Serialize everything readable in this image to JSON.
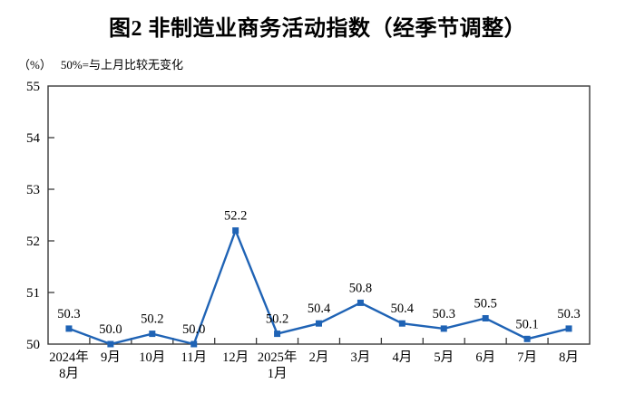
{
  "title": "图2 非制造业商务活动指数（经季节调整）",
  "subtitle": {
    "unit": "（%）",
    "note": "50%=与上月比较无变化"
  },
  "colors": {
    "line": "#1f63b5",
    "marker": "#1f63b5",
    "axis": "#3a3a3a",
    "text": "#000000",
    "background": "#ffffff"
  },
  "chart_data": {
    "type": "line",
    "title": "图2 非制造业商务活动指数（经季节调整）",
    "ylabel": "（%）",
    "annotation": "50%=与上月比较无变化",
    "categories": [
      "2024年\n8月",
      "9月",
      "10月",
      "11月",
      "12月",
      "2025年\n1月",
      "2月",
      "3月",
      "4月",
      "5月",
      "6月",
      "7月",
      "8月"
    ],
    "series": [
      {
        "name": "非制造业商务活动指数",
        "values": [
          50.3,
          50.0,
          50.2,
          50.0,
          52.2,
          50.2,
          50.4,
          50.8,
          50.4,
          50.3,
          50.5,
          50.1,
          50.3
        ]
      }
    ],
    "data_labels": [
      "50.3",
      "50.0",
      "50.2",
      "50.0",
      "52.2",
      "50.2",
      "50.4",
      "50.8",
      "50.4",
      "50.3",
      "50.5",
      "50.1",
      "50.3"
    ],
    "ylim": [
      50,
      55
    ],
    "yticks": [
      "50",
      "51",
      "52",
      "53",
      "54",
      "55"
    ],
    "grid": false,
    "legend_position": "none",
    "marker": "square"
  }
}
